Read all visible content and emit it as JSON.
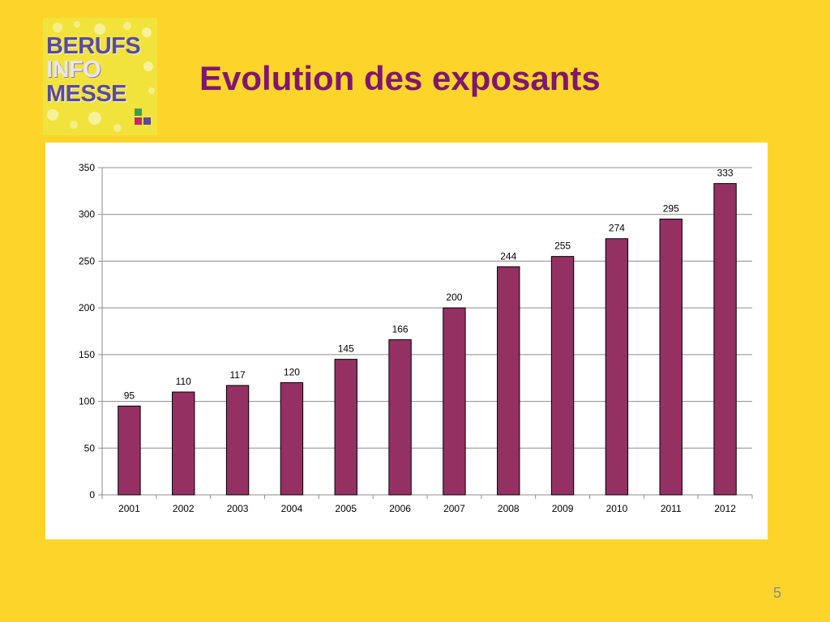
{
  "slide": {
    "title": "Evolution des exposants",
    "page_number": "5",
    "background_color": "#FDD52A",
    "title_color": "#7F1670"
  },
  "logo": {
    "lines": [
      "BERUFS",
      "INFO",
      "MESSE"
    ],
    "text_color": "#5A4A9C",
    "background_color": "#F2E33C"
  },
  "chart_data": {
    "type": "bar",
    "categories": [
      "2001",
      "2002",
      "2003",
      "2004",
      "2005",
      "2006",
      "2007",
      "2008",
      "2009",
      "2010",
      "2011",
      "2012"
    ],
    "values": [
      95,
      110,
      117,
      120,
      145,
      166,
      200,
      244,
      255,
      274,
      295,
      333
    ],
    "title": "",
    "xlabel": "",
    "ylabel": "",
    "ylim": [
      0,
      350
    ],
    "yticks": [
      0,
      50,
      100,
      150,
      200,
      250,
      300,
      350
    ],
    "grid": true,
    "legend": "none",
    "data_labels": true,
    "bar_color": "#943162"
  }
}
